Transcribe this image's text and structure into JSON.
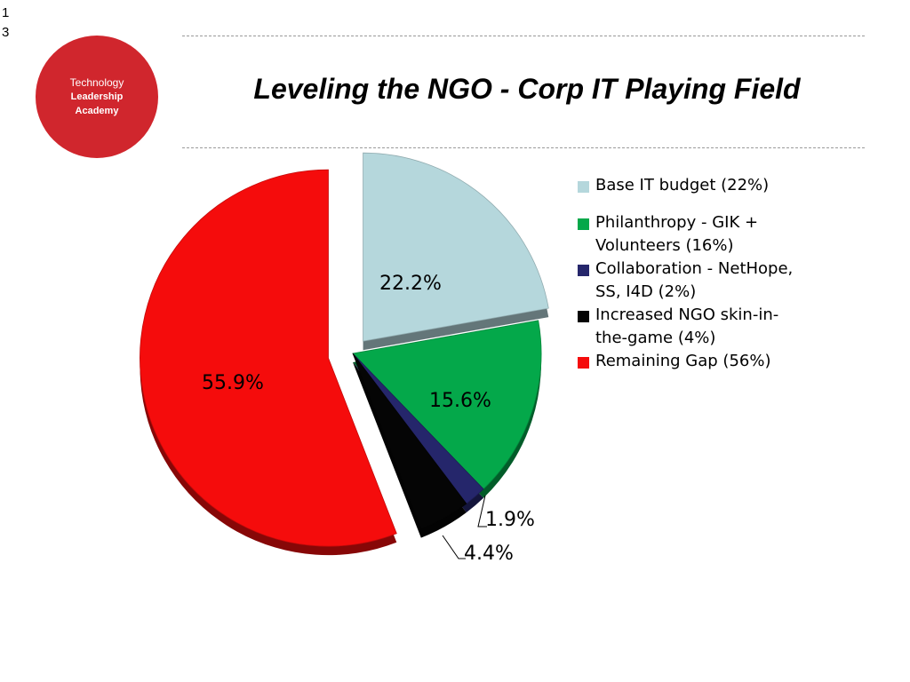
{
  "slide": {
    "number_lines": [
      "1",
      "3"
    ]
  },
  "logo": {
    "line1": "Technology",
    "line2": "Leadership",
    "line3": "Academy",
    "color": "#d0262d"
  },
  "title": "Leveling the NGO - Corp IT Playing Field",
  "chart_data": {
    "type": "pie",
    "title": "",
    "slices": [
      {
        "label": "Base IT budget (22%)",
        "value": 22.2,
        "data_label": "22.2%",
        "color": "#b5d7dc"
      },
      {
        "label": "Philanthropy - GIK + Volunteers (16%)",
        "value": 15.6,
        "data_label": "15.6%",
        "color": "#04a84a"
      },
      {
        "label": "Collaboration  - NetHope, SS, I4D (2%)",
        "value": 1.9,
        "data_label": "1.9%",
        "color": "#25266b"
      },
      {
        "label": "Increased NGO skin-in-the-game (4%)",
        "value": 4.4,
        "data_label": "4.4%",
        "color": "#050505"
      },
      {
        "label": "Remaining Gap  (56%)",
        "value": 55.9,
        "data_label": "55.9%",
        "color": "#f50c0c"
      }
    ],
    "exploded": [
      "Base IT budget (22%)",
      "Remaining Gap  (56%)"
    ],
    "legend_position": "right",
    "style": "3d"
  }
}
